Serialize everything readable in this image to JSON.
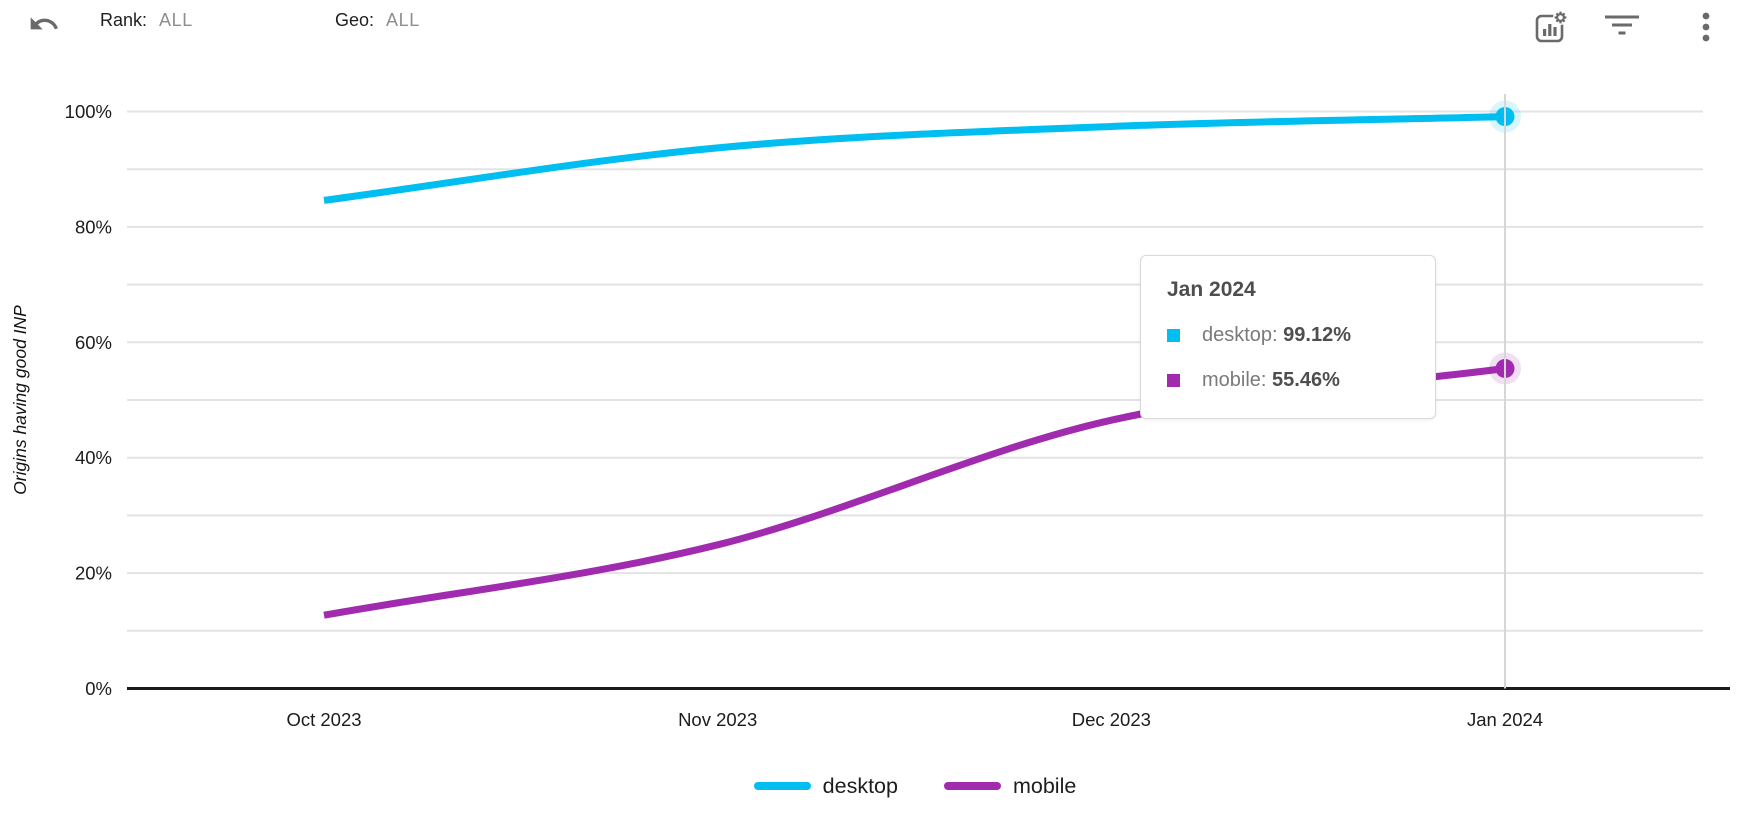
{
  "toolbar": {
    "rank_label": "Rank:",
    "rank_value": "ALL",
    "geo_label": "Geo:",
    "geo_value": "ALL",
    "icons": [
      "undo-icon",
      "chart-options-icon",
      "filter-icon",
      "more-vertical-icon"
    ]
  },
  "chart_data": {
    "type": "line",
    "title": "",
    "xlabel": "",
    "ylabel": "Origins having good INP",
    "categories": [
      "Oct 2023",
      "Nov 2023",
      "Dec 2023",
      "Jan 2024"
    ],
    "series": [
      {
        "name": "desktop",
        "color": "#00BEF0",
        "values": [
          84.6,
          93.7,
          97.4,
          99.12
        ]
      },
      {
        "name": "mobile",
        "color": "#A12BAE",
        "values": [
          12.7,
          24.9,
          46.5,
          55.46
        ]
      }
    ],
    "ylim": [
      0,
      100
    ],
    "yticks": [
      {
        "value": 0,
        "label": "0%"
      },
      {
        "value": 20,
        "label": "20%"
      },
      {
        "value": 40,
        "label": "40%"
      },
      {
        "value": 60,
        "label": "60%"
      },
      {
        "value": 80,
        "label": "80%"
      },
      {
        "value": 100,
        "label": "100%"
      }
    ],
    "grid_values": [
      10,
      20,
      30,
      40,
      50,
      60,
      70,
      80,
      90,
      100
    ],
    "grid": true,
    "legend_position": "bottom",
    "highlight_category": "Jan 2024"
  },
  "tooltip": {
    "title": "Jan 2024",
    "rows": [
      {
        "name": "desktop",
        "separator": ": ",
        "value": "99.12%",
        "color": "#00BEF0"
      },
      {
        "name": "mobile",
        "separator": ": ",
        "value": "55.46%",
        "color": "#A12BAE"
      }
    ]
  },
  "colors": {
    "grid": "#e3e3e3",
    "axis": "#1b1b1b",
    "crosshair": "#d6d6d6",
    "tick_text": "#1c1c1c",
    "icon": "#6a6a6a"
  }
}
